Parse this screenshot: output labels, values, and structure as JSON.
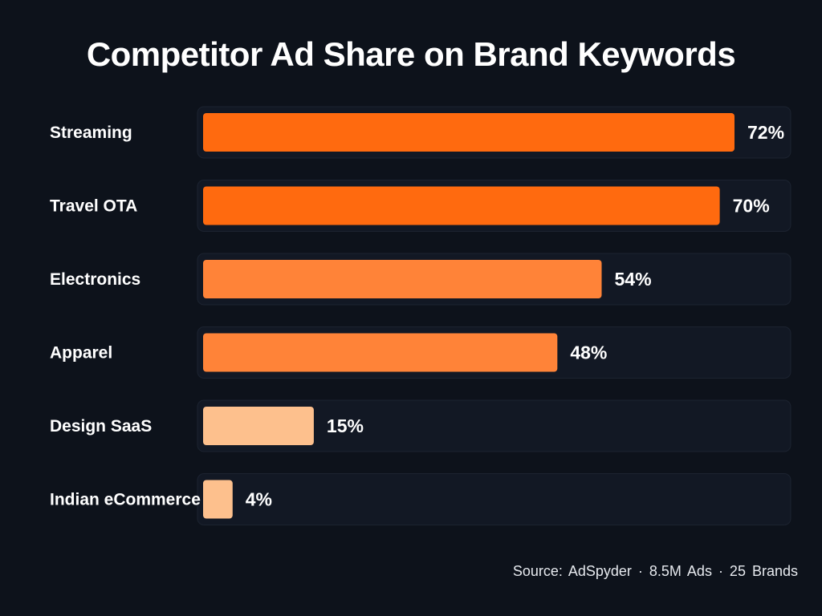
{
  "chart_data": {
    "type": "bar",
    "orientation": "horizontal",
    "title": "Competitor Ad Share on Brand Keywords",
    "categories": [
      "Streaming",
      "Travel OTA",
      "Electronics",
      "Apparel",
      "Design SaaS",
      "Indian eCommerce"
    ],
    "values": [
      72,
      70,
      54,
      48,
      15,
      4
    ],
    "value_labels": [
      "72%",
      "70%",
      "54%",
      "48%",
      "15%",
      "4%"
    ],
    "unit": "%",
    "xlim": [
      0,
      100
    ],
    "xlabel": "",
    "ylabel": "",
    "grid": false,
    "legend": "none",
    "bar_colors": [
      "#ff6a0f",
      "#ff6a0f",
      "#ff8338",
      "#ff8338",
      "#fdc08d",
      "#fdc08d"
    ],
    "track_color": "#121824",
    "track_border": "#1c2330",
    "source": "Source: AdSpyder · 8.5M Ads · 25 Brands"
  }
}
